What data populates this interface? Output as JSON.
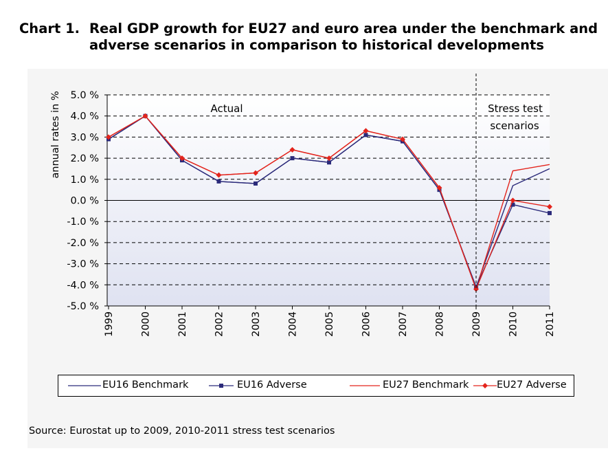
{
  "title": {
    "number": "Chart 1.",
    "line1": "Real GDP growth for EU27 and euro area under the benchmark and",
    "line2": "adverse scenarios in comparison to historical developments"
  },
  "source": "Source:  Eurostat up to 2009, 2010-2011 stress test scenarios",
  "colors": {
    "eu16": "#2b2a7a",
    "eu27": "#e3241c",
    "plot_bg_top": "#ffffff",
    "plot_bg_bottom": "#dfe2f1"
  },
  "chart_data": {
    "type": "line",
    "title": "Real GDP growth for EU27 and euro area under the benchmark and adverse scenarios in comparison to historical developments",
    "ylabel": "annual rates in %",
    "xlabel": "",
    "categories": [
      "1999",
      "2000",
      "2001",
      "2002",
      "2003",
      "2004",
      "2005",
      "2006",
      "2007",
      "2008",
      "2009",
      "2010",
      "2011"
    ],
    "ylim": [
      -5.0,
      5.0
    ],
    "yticks": [
      "5.0 %",
      "4.0 %",
      "3.0 %",
      "2.0 %",
      "1.0 %",
      "0.0 %",
      "-1.0 %",
      "-2.0 %",
      "-3.0 %",
      "-4.0 %",
      "-5.0 %"
    ],
    "grid": true,
    "annotations": {
      "actual": "Actual",
      "stress_line1": "Stress test",
      "stress_line2": "scenarios"
    },
    "series": [
      {
        "name": "EU16 Benchmark",
        "color": "#2b2a7a",
        "marker": "none",
        "values": [
          2.9,
          4.0,
          1.9,
          0.9,
          0.8,
          2.0,
          1.8,
          3.1,
          2.8,
          0.5,
          -4.1,
          0.7,
          1.5
        ]
      },
      {
        "name": "EU16 Adverse",
        "color": "#2b2a7a",
        "marker": "square",
        "values": [
          2.9,
          4.0,
          1.9,
          0.9,
          0.8,
          2.0,
          1.8,
          3.1,
          2.8,
          0.5,
          -4.1,
          -0.2,
          -0.6
        ]
      },
      {
        "name": "EU27 Benchmark",
        "color": "#e3241c",
        "marker": "none",
        "values": [
          3.0,
          4.0,
          2.0,
          1.2,
          1.3,
          2.4,
          2.0,
          3.3,
          2.9,
          0.6,
          -4.2,
          1.4,
          1.7
        ]
      },
      {
        "name": "EU27 Adverse",
        "color": "#e3241c",
        "marker": "diamond",
        "values": [
          3.0,
          4.0,
          2.0,
          1.2,
          1.3,
          2.4,
          2.0,
          3.3,
          2.9,
          0.6,
          -4.2,
          0.0,
          -0.3
        ]
      }
    ]
  }
}
